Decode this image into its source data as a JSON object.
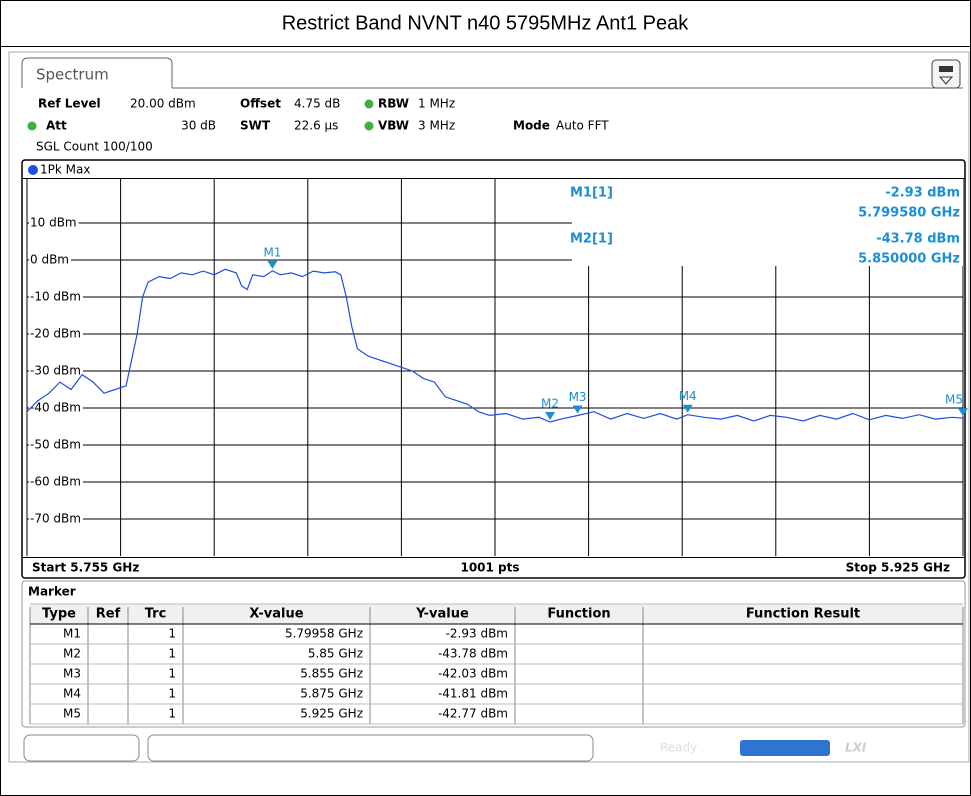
{
  "title": "Restrict Band NVNT n40 5795MHz Ant1 Peak",
  "tab": "Spectrum",
  "settings": {
    "ref_level_label": "Ref Level",
    "ref_level": "20.00 dBm",
    "offset_label": "Offset",
    "offset": "4.75 dB",
    "rbw_label": "RBW",
    "rbw": "1 MHz",
    "att_label": "Att",
    "att": "30 dB",
    "swt_label": "SWT",
    "swt": "22.6 µs",
    "vbw_label": "VBW",
    "vbw": "3 MHz",
    "mode_label": "Mode",
    "mode": "Auto FFT",
    "sgl": "SGL Count 100/100"
  },
  "chart_data": {
    "type": "line",
    "x": [
      5.755,
      5.757,
      5.759,
      5.761,
      5.763,
      5.765,
      5.767,
      5.769,
      5.771,
      5.773,
      5.775,
      5.776,
      5.777,
      5.779,
      5.781,
      5.783,
      5.785,
      5.787,
      5.789,
      5.791,
      5.793,
      5.794,
      5.795,
      5.796,
      5.798,
      5.79958,
      5.801,
      5.803,
      5.805,
      5.807,
      5.809,
      5.811,
      5.812,
      5.813,
      5.814,
      5.815,
      5.817,
      5.819,
      5.821,
      5.823,
      5.825,
      5.827,
      5.829,
      5.831,
      5.833,
      5.835,
      5.837,
      5.839,
      5.842,
      5.845,
      5.848,
      5.85,
      5.852,
      5.855,
      5.858,
      5.861,
      5.864,
      5.867,
      5.87,
      5.873,
      5.875,
      5.878,
      5.881,
      5.884,
      5.887,
      5.89,
      5.893,
      5.896,
      5.899,
      5.902,
      5.905,
      5.908,
      5.911,
      5.914,
      5.917,
      5.92,
      5.923,
      5.925
    ],
    "series": [
      {
        "name": "1Pk Max",
        "color": "#1f4fe0",
        "values": [
          -41,
          -38,
          -36,
          -33,
          -35,
          -31,
          -33,
          -36,
          -35,
          -34,
          -20,
          -10,
          -6,
          -4.5,
          -5,
          -3.5,
          -4,
          -3,
          -4,
          -2.5,
          -3.5,
          -7,
          -8,
          -4,
          -4.5,
          -2.93,
          -4,
          -3.5,
          -4.5,
          -3,
          -3.5,
          -3.2,
          -4,
          -10,
          -18,
          -24,
          -26,
          -27,
          -28,
          -29,
          -30,
          -32,
          -33,
          -37,
          -38,
          -39,
          -41,
          -42,
          -41.5,
          -43,
          -42.5,
          -43.78,
          -43,
          -42.03,
          -41,
          -43,
          -41.5,
          -42.8,
          -41.5,
          -43,
          -41.81,
          -42.5,
          -43,
          -42,
          -43.5,
          -42,
          -42.5,
          -43.5,
          -42,
          -43,
          -41.5,
          -43.2,
          -42,
          -42.8,
          -41.8,
          -43,
          -42.5,
          -42.77
        ]
      }
    ],
    "xlim": [
      5.755,
      5.925
    ],
    "xticks": [
      5.755,
      5.772,
      5.789,
      5.806,
      5.823,
      5.84,
      5.857,
      5.874,
      5.891,
      5.908,
      5.925
    ],
    "ylim": [
      -80,
      20
    ],
    "yticks": [
      {
        "value": 10,
        "label": "10 dBm"
      },
      {
        "value": 0,
        "label": "0 dBm"
      },
      {
        "value": -10,
        "label": "-10 dBm"
      },
      {
        "value": -20,
        "label": "-20 dBm"
      },
      {
        "value": -30,
        "label": "-30 dBm"
      },
      {
        "value": -40,
        "label": "-40 dBm"
      },
      {
        "value": -50,
        "label": "-50 dBm"
      },
      {
        "value": -60,
        "label": "-60 dBm"
      },
      {
        "value": -70,
        "label": "-70 dBm"
      }
    ],
    "grid": true,
    "marker_color": "#1a8fd6",
    "markers": [
      {
        "name": "M1",
        "x": 5.79958,
        "y": -2.93
      },
      {
        "name": "M2",
        "x": 5.85,
        "y": -43.78
      },
      {
        "name": "M3",
        "x": 5.855,
        "y": -42.03
      },
      {
        "name": "M4",
        "x": 5.875,
        "y": -41.81
      },
      {
        "name": "M5",
        "x": 5.925,
        "y": -42.77
      }
    ]
  },
  "readout": [
    {
      "label": "M1[1]",
      "value": "-2.93 dBm",
      "freq": "5.799580 GHz"
    },
    {
      "label": "M2[1]",
      "value": "-43.78 dBm",
      "freq": "5.850000 GHz"
    }
  ],
  "footer": {
    "start": "Start 5.755 GHz",
    "points": "1001 pts",
    "stop": "Stop 5.925 GHz"
  },
  "marker_table": {
    "title": "Marker",
    "columns": [
      "Type",
      "Ref",
      "Trc",
      "X-value",
      "Y-value",
      "Function",
      "Function Result"
    ],
    "rows": [
      [
        "M1",
        "",
        "1",
        "5.79958 GHz",
        "-2.93 dBm",
        "",
        ""
      ],
      [
        "M2",
        "",
        "1",
        "5.85 GHz",
        "-43.78 dBm",
        "",
        ""
      ],
      [
        "M3",
        "",
        "1",
        "5.855 GHz",
        "-42.03 dBm",
        "",
        ""
      ],
      [
        "M4",
        "",
        "1",
        "5.875 GHz",
        "-41.81 dBm",
        "",
        ""
      ],
      [
        "M5",
        "",
        "1",
        "5.925 GHz",
        "-42.77 dBm",
        "",
        ""
      ]
    ]
  },
  "status": "Ready"
}
